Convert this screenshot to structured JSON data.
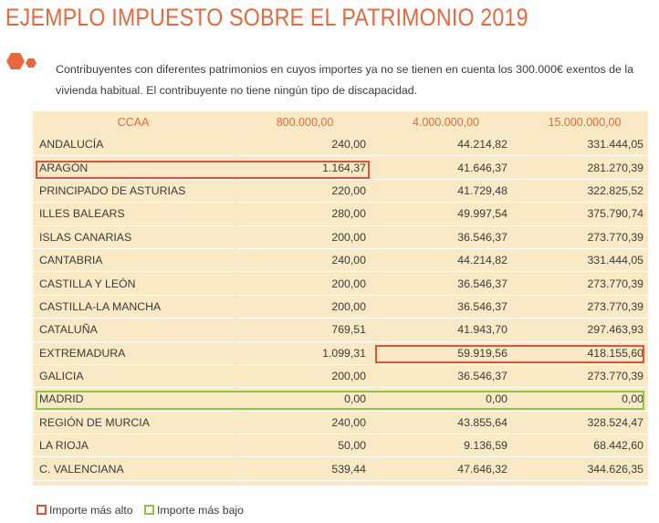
{
  "page": {
    "title": "EJEMPLO IMPUESTO SOBRE EL PATRIMONIO 2019",
    "description": "Contribuyentes con diferentes patrimonios en cuyos importes ya no se tienen en cuenta los 300.000€ exentos de la vivienda habitual. El contribuyente no tiene ningún tipo de discapacidad."
  },
  "colors": {
    "accent": "#e6683c",
    "table_bg": "#f9e9c4",
    "highest": "#e0523a",
    "lowest": "#8dc63f"
  },
  "table": {
    "headers": [
      "CCAA",
      "800.000,00",
      "4.000.000,00",
      "15.000.000,00"
    ],
    "rows": [
      [
        "ANDALUCÍA",
        "240,00",
        "44.214,82",
        "331.444,05"
      ],
      [
        "ARAGÓN",
        "1.164,37",
        "41.646,37",
        "281.270,39"
      ],
      [
        "PRINCIPADO DE ASTURIAS",
        "220,00",
        "41.729,48",
        "322.825,52"
      ],
      [
        "ILLES BALEARS",
        "280,00",
        "49.997,54",
        "375.790,74"
      ],
      [
        "ISLAS CANARIAS",
        "200,00",
        "36.546,37",
        "273.770,39"
      ],
      [
        "CANTABRIA",
        "240,00",
        "44.214,82",
        "331.444,05"
      ],
      [
        "CASTILLA Y LEÓN",
        "200,00",
        "36.546,37",
        "273.770,39"
      ],
      [
        "CASTILLA-LA MANCHA",
        "200,00",
        "36.546,37",
        "273.770,39"
      ],
      [
        "CATALUÑA",
        "769,51",
        "41.943,70",
        "297.463,93"
      ],
      [
        "EXTREMADURA",
        "1.099,31",
        "59.919,56",
        "418.155,60"
      ],
      [
        "GALICIA",
        "200,00",
        "36.546,37",
        "273.770,39"
      ],
      [
        "MADRID",
        "0,00",
        "0,00",
        "0,00"
      ],
      [
        "REGIÓN DE MURCIA",
        "240,00",
        "43.855,64",
        "328.524,47"
      ],
      [
        "LA RIOJA",
        "50,00",
        "9.136,59",
        "68.442,60"
      ],
      [
        "C. VALENCIANA",
        "539,44",
        "47.646,32",
        "344.626,35"
      ]
    ]
  },
  "legend": {
    "highest_label": "Importe más alto",
    "lowest_label": "Importe más bajo"
  }
}
